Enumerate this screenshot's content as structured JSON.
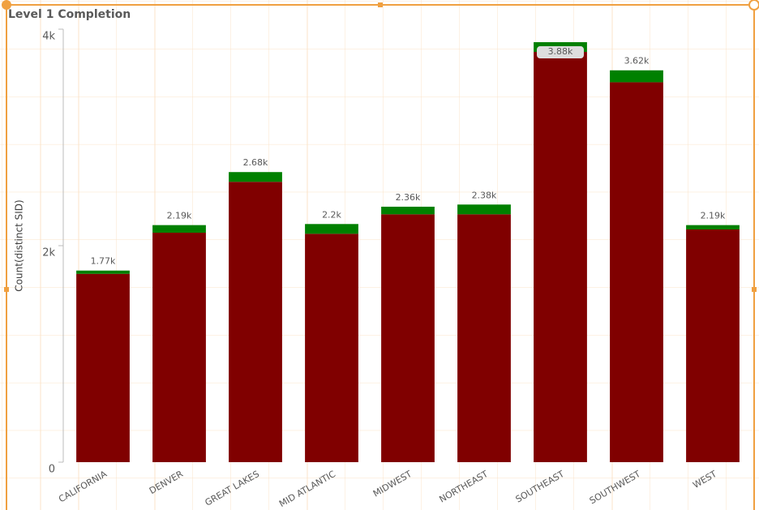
{
  "chart_data": {
    "type": "stacked-bar",
    "title": "Level 1 Completion",
    "y_label": "Count(distinct SID)",
    "categories": [
      "CALIFORNIA",
      "DENVER",
      "GREAT LAKES",
      "MID ATLANTIC",
      "MIDWEST",
      "NORTHEAST",
      "SOUTHEAST",
      "SOUTHWEST",
      "WEST"
    ],
    "series": [
      {
        "color": "#800000",
        "values": [
          1740,
          2120,
          2590,
          2110,
          2290,
          2290,
          3790,
          3510,
          2150
        ]
      },
      {
        "color": "#008000",
        "values": [
          30,
          70,
          90,
          90,
          70,
          90,
          90,
          110,
          40
        ]
      }
    ],
    "totals": [
      1770,
      2190,
      2680,
      2200,
      2360,
      2380,
      3880,
      3620,
      2190
    ],
    "total_labels": [
      "1.77k",
      "2.19k",
      "2.68k",
      "2.2k",
      "2.36k",
      "2.38k",
      "3.88k",
      "3.62k",
      "2.19k"
    ],
    "ylim": [
      0,
      4000
    ],
    "yticks": [
      0,
      {
        "value": 2000,
        "label": "2k"
      },
      {
        "value": 4000,
        "label": "4k"
      }
    ]
  }
}
